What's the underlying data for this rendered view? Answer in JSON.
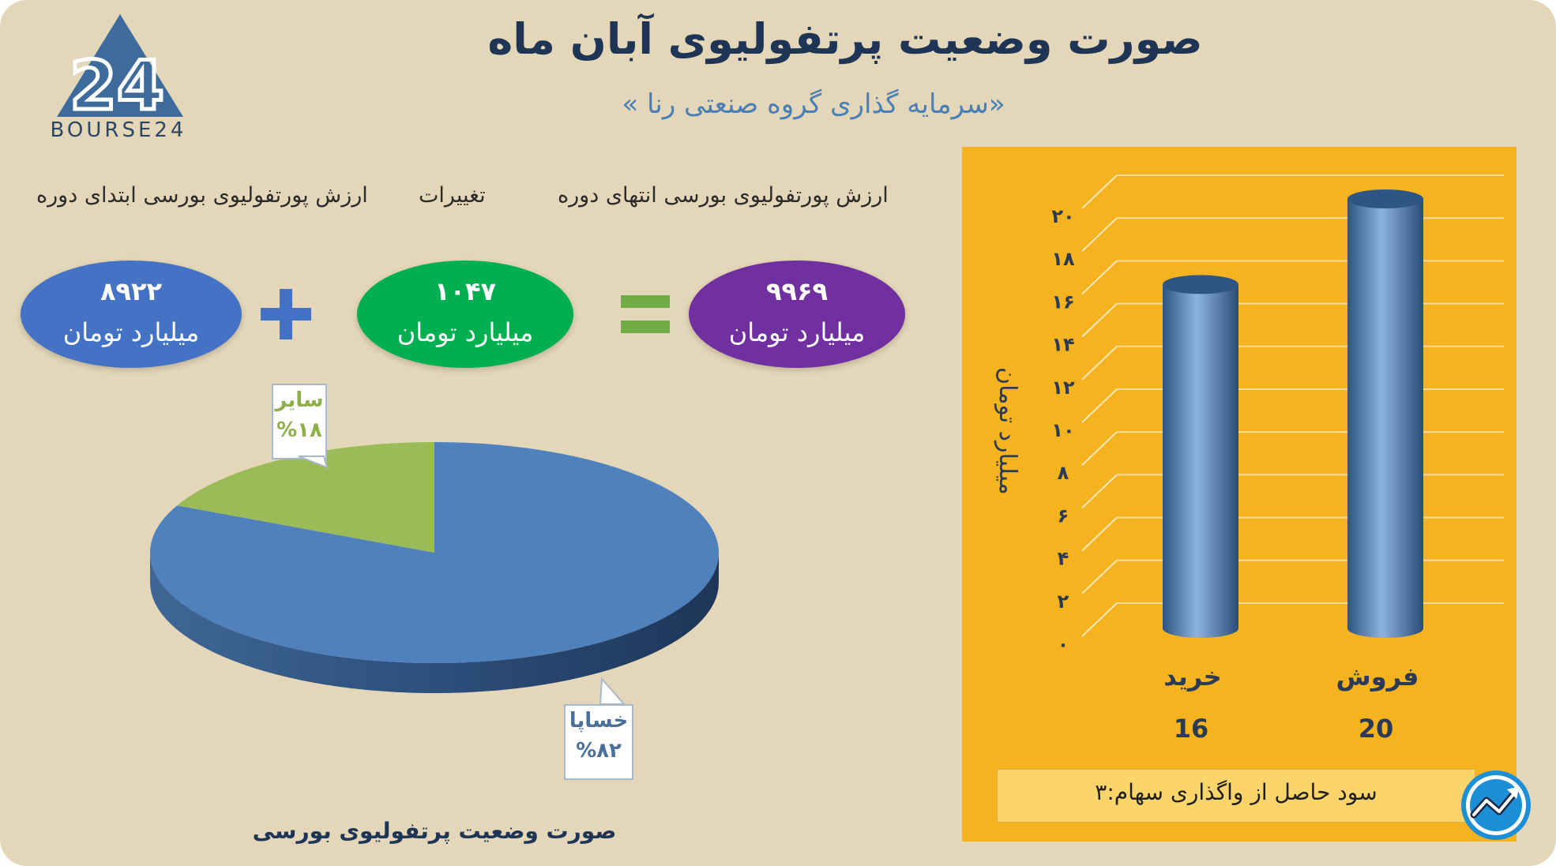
{
  "title": "صورت وضعیت پرتفولیوی آبان ماه",
  "subtitle": "«سرمایه گذاری گروه صنعتی رنا »",
  "logo": {
    "text": "BOURSE24",
    "mark": "24"
  },
  "equation": {
    "headers": {
      "end_value": "ارزش پورتفولیوی بورسی انتهای دوره",
      "changes": "تغییرات",
      "start_value": "ارزش پورتفولیوی بورسی ابتدای دوره"
    },
    "end_value": {
      "number": "۹۹۶۹",
      "unit": "میلیارد تومان",
      "color": "#7030a0"
    },
    "changes": {
      "number": "۱۰۴۷",
      "unit": "میلیارد تومان",
      "color": "#00b050"
    },
    "start_value": {
      "number": "۸۹۲۲",
      "unit": "میلیارد تومان",
      "color": "#4472c4"
    },
    "plus_color": "#4472c4",
    "equals_color": "#70ad47"
  },
  "chart_data": [
    {
      "type": "pie",
      "title": "صورت وضعیت پرتفولیوی بورسی",
      "slices": [
        {
          "label": "خساپا",
          "display": "%۸۲",
          "value": 82,
          "color": "#4f81bd"
        },
        {
          "label": "سایر",
          "display": "%۱۸",
          "value": 18,
          "color": "#9bbb59"
        }
      ]
    },
    {
      "type": "bar",
      "categories": [
        "خرید",
        "فروش"
      ],
      "values": [
        16,
        20
      ],
      "value_labels": [
        "16",
        "20"
      ],
      "ylabel": "میلیارد تومان",
      "ylim": [
        0,
        20
      ],
      "yticks": [
        "۰",
        "۲",
        "۴",
        "۶",
        "۸",
        "۱۰",
        "۱۲",
        "۱۴",
        "۱۶",
        "۱۸",
        "۲۰"
      ],
      "grid": true,
      "bar_color": "#4f81bd",
      "background": "#f5b31f"
    }
  ],
  "profit_note": "سود حاصل از واگذاری سهام:۳"
}
